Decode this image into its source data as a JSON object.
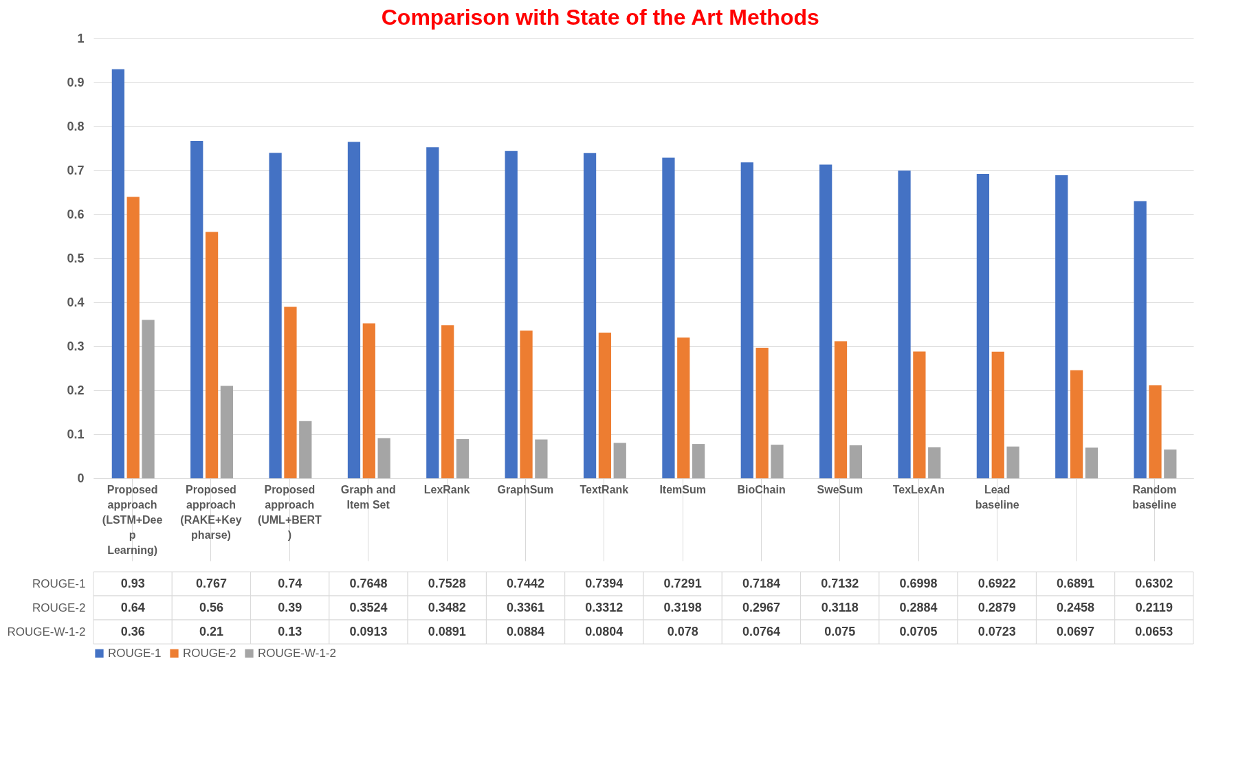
{
  "chart_data": {
    "type": "bar",
    "title": "Comparison with State of the Art Methods",
    "categories": [
      "Proposed approach (LSTM+Deep Learning)",
      "Proposed approach (RAKE+Keypharse)",
      "Proposed approach (UML+BERT)",
      "Graph and Item Set",
      "LexRank",
      "GraphSum",
      "TextRank",
      "ItemSum",
      "BioChain",
      "SweSum",
      "TexLexAn",
      "Lead baseline",
      null,
      "Random baseline"
    ],
    "series": [
      {
        "name": "ROUGE-1",
        "color": "#4472c4",
        "values": [
          0.93,
          0.767,
          0.74,
          0.7648,
          0.7528,
          0.7442,
          0.7394,
          0.7291,
          0.7184,
          0.7132,
          0.6998,
          0.6922,
          0.6891,
          0.6302
        ]
      },
      {
        "name": "ROUGE-2",
        "color": "#ed7d31",
        "values": [
          0.64,
          0.56,
          0.39,
          0.3524,
          0.3482,
          0.3361,
          0.3312,
          0.3198,
          0.2967,
          0.3118,
          0.2884,
          0.2879,
          0.2458,
          0.2119
        ]
      },
      {
        "name": "ROUGE-W-1-2",
        "color": "#a5a5a5",
        "values": [
          0.36,
          0.21,
          0.13,
          0.0913,
          0.0891,
          0.0884,
          0.0804,
          0.078,
          0.0764,
          0.075,
          0.0705,
          0.0723,
          0.0697,
          0.0653
        ]
      }
    ],
    "ylim": [
      0,
      1
    ],
    "yticks": [
      0,
      0.1,
      0.2,
      0.3,
      0.4,
      0.5,
      0.6,
      0.7,
      0.8,
      0.9,
      1
    ],
    "grid": "y",
    "legend": "bottom",
    "data_labels": true
  }
}
